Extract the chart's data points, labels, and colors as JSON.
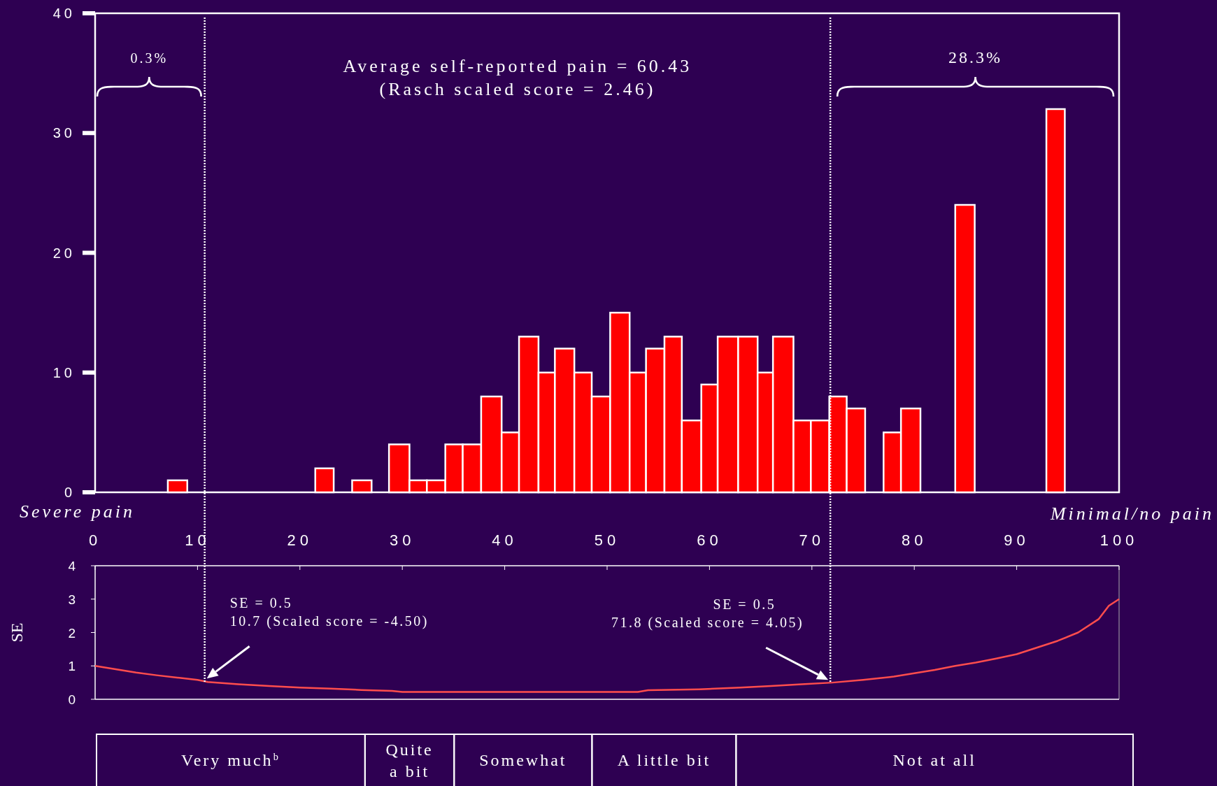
{
  "chart_data": [
    {
      "type": "histogram",
      "color": "#ff0000",
      "xlim": [
        0,
        100
      ],
      "xticks": [
        0,
        10,
        20,
        30,
        40,
        50,
        60,
        70,
        80,
        90,
        100
      ],
      "ylim": [
        0,
        40
      ],
      "yticks": [
        0,
        10,
        20,
        30,
        40
      ],
      "bins": [
        7.1,
        9.0,
        21.5,
        23.3,
        25.1,
        27.0,
        28.7,
        30.7,
        32.4,
        34.2,
        35.9,
        37.7,
        39.7,
        41.4,
        43.3,
        44.9,
        46.8,
        48.5,
        50.3,
        52.2,
        53.8,
        55.6,
        57.3,
        59.2,
        60.8,
        62.8,
        64.7,
        66.2,
        68.2,
        69.9,
        71.7,
        73.4,
        75.2,
        77.0,
        78.7,
        80.6,
        84.0,
        85.9,
        92.9,
        94.7
      ],
      "values": [
        1,
        0,
        2,
        0,
        1,
        0,
        4,
        1,
        1,
        4,
        4,
        8,
        5,
        13,
        10,
        12,
        10,
        8,
        15,
        10,
        12,
        13,
        6,
        9,
        13,
        13,
        10,
        13,
        6,
        6,
        8,
        7,
        0,
        5,
        7,
        0,
        24,
        0,
        32
      ],
      "ref_lines": [
        {
          "axis": "x",
          "value": 10.7,
          "color": "#ffffff",
          "line_style": "dotted"
        },
        {
          "axis": "x",
          "value": 71.8,
          "color": "#ffffff",
          "line_style": "dotted"
        }
      ],
      "annotations": [
        "0.3%",
        "28.3%",
        "Average self-reported pain = 60.43\n(Rasch scaled score = 2.46)",
        "Severe pain",
        "Minimal/no pain"
      ],
      "grid": false
    },
    {
      "type": "line",
      "ylabel": "SE",
      "xlim": [
        0,
        100
      ],
      "xticks": [
        {
          "value": 0,
          "label": null
        },
        {
          "value": 10,
          "label": null
        },
        {
          "value": 20,
          "label": null
        },
        {
          "value": 30,
          "label": null
        },
        {
          "value": 40,
          "label": null
        },
        {
          "value": 50,
          "label": null
        },
        {
          "value": 60,
          "label": null
        },
        {
          "value": 70,
          "label": null
        },
        {
          "value": 80,
          "label": null
        },
        {
          "value": 90,
          "label": null
        },
        {
          "value": 100,
          "label": null
        }
      ],
      "ylim": [
        0,
        4
      ],
      "yticks": [
        0,
        1,
        2,
        3,
        4
      ],
      "tick_labels": "y",
      "grid": false,
      "series": [
        {
          "color": "#ff4d4d",
          "x": [
            0,
            2,
            4,
            6,
            8,
            10,
            11,
            14,
            17,
            20,
            23,
            26,
            29,
            30,
            40,
            53,
            54,
            59,
            63,
            66,
            69,
            72,
            75,
            78,
            80,
            82,
            84,
            86,
            88,
            90,
            92,
            94,
            96,
            98,
            99,
            100
          ],
          "values": [
            1.0,
            0.9,
            0.8,
            0.72,
            0.65,
            0.58,
            0.52,
            0.45,
            0.4,
            0.35,
            0.32,
            0.28,
            0.25,
            0.22,
            0.22,
            0.22,
            0.27,
            0.3,
            0.35,
            0.4,
            0.45,
            0.5,
            0.58,
            0.68,
            0.78,
            0.88,
            1.0,
            1.1,
            1.22,
            1.35,
            1.55,
            1.75,
            2.0,
            2.4,
            2.8,
            3.0
          ]
        }
      ],
      "ref_lines": [
        {
          "axis": "x",
          "value": 10.7,
          "color": "#ffffff",
          "line_style": "dotted"
        },
        {
          "axis": "x",
          "value": 71.8,
          "color": "#ffffff",
          "line_style": "dotted"
        }
      ],
      "annotations": [
        "SE = 0.5\n10.7 (Scaled score = -4.50)",
        "SE = 0.5\n71.8 (Scaled score = 4.05)"
      ]
    },
    {
      "type": "other",
      "annotations": [
        "Very much$^{b}$",
        "Quite a bit",
        "Somewhat",
        "A little bit",
        "Not at all"
      ]
    }
  ]
}
